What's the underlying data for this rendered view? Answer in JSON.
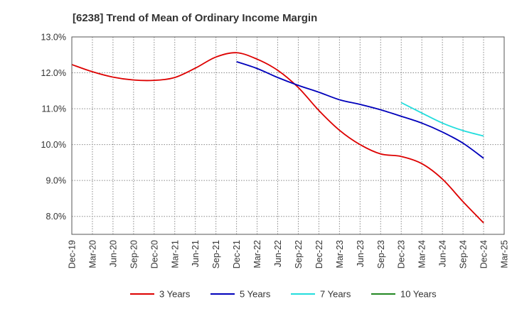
{
  "chart_data": {
    "type": "line",
    "title": "[6238]  Trend of Mean of Ordinary Income Margin",
    "xlabel": "",
    "ylabel": "",
    "x": [
      "Dec-19",
      "Mar-20",
      "Jun-20",
      "Sep-20",
      "Dec-20",
      "Mar-21",
      "Jun-21",
      "Sep-21",
      "Dec-21",
      "Mar-22",
      "Jun-22",
      "Sep-22",
      "Dec-22",
      "Mar-23",
      "Jun-23",
      "Sep-23",
      "Dec-23",
      "Mar-24",
      "Jun-24",
      "Sep-24",
      "Dec-24",
      "Mar-25"
    ],
    "yticks": [
      "8.0%",
      "9.0%",
      "10.0%",
      "11.0%",
      "12.0%",
      "13.0%"
    ],
    "ylim": [
      7.5,
      13.0
    ],
    "grid": true,
    "legend_position": "bottom",
    "series": [
      {
        "name": "3 Years",
        "color": "#dd0000",
        "values": [
          12.23,
          12.03,
          11.88,
          11.8,
          11.79,
          11.87,
          12.13,
          12.44,
          12.56,
          12.38,
          12.07,
          11.59,
          10.95,
          10.4,
          10.0,
          9.74,
          9.67,
          9.47,
          9.04,
          8.41,
          7.82,
          null
        ]
      },
      {
        "name": "5 Years",
        "color": "#0000bb",
        "values": [
          null,
          null,
          null,
          null,
          null,
          null,
          null,
          null,
          12.31,
          12.12,
          11.87,
          11.65,
          11.46,
          11.25,
          11.12,
          10.97,
          10.79,
          10.6,
          10.35,
          10.04,
          9.62,
          null
        ]
      },
      {
        "name": "7 Years",
        "color": "#22dddd",
        "values": [
          null,
          null,
          null,
          null,
          null,
          null,
          null,
          null,
          null,
          null,
          null,
          null,
          null,
          null,
          null,
          null,
          11.17,
          10.88,
          10.6,
          10.39,
          10.24,
          null
        ]
      },
      {
        "name": "10 Years",
        "color": "#228822",
        "values": [
          null,
          null,
          null,
          null,
          null,
          null,
          null,
          null,
          null,
          null,
          null,
          null,
          null,
          null,
          null,
          null,
          null,
          null,
          null,
          null,
          null,
          null
        ]
      }
    ]
  }
}
